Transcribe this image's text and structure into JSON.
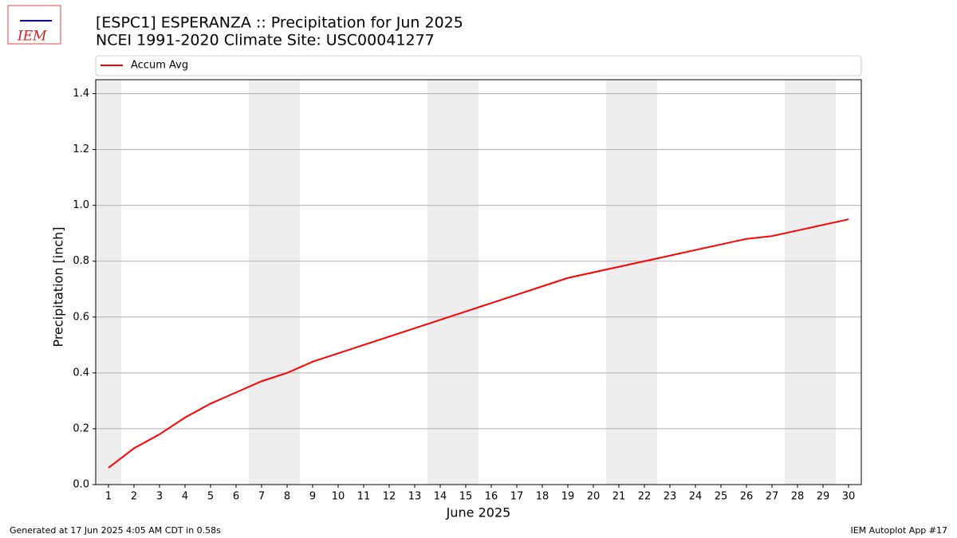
{
  "chart_data": {
    "type": "line",
    "title": "[ESPC1] ESPERANZA :: Precipitation for Jun 2025",
    "subtitle": "NCEI 1991-2020 Climate Site: USC00041277",
    "logo_text": "IEM",
    "xlabel": "June 2025",
    "ylabel": "Precipitation [inch]",
    "x": [
      1,
      2,
      3,
      4,
      5,
      6,
      7,
      8,
      9,
      10,
      11,
      12,
      13,
      14,
      15,
      16,
      17,
      18,
      19,
      20,
      21,
      22,
      23,
      24,
      25,
      26,
      27,
      28,
      29,
      30
    ],
    "series": [
      {
        "name": "Accum Avg",
        "color": "#ff0000",
        "values": [
          0.06,
          0.13,
          0.18,
          0.24,
          0.29,
          0.33,
          0.37,
          0.4,
          0.44,
          0.47,
          0.5,
          0.53,
          0.56,
          0.59,
          0.62,
          0.65,
          0.68,
          0.71,
          0.74,
          0.76,
          0.78,
          0.8,
          0.82,
          0.84,
          0.86,
          0.88,
          0.89,
          0.91,
          0.93,
          0.95
        ]
      }
    ],
    "shaded_days": [
      1,
      7,
      8,
      14,
      15,
      21,
      22,
      28,
      29
    ],
    "shade_color": "#eeeeee",
    "xlim": [
      0.5,
      30.5
    ],
    "xticks": [
      1,
      2,
      3,
      4,
      5,
      6,
      7,
      8,
      9,
      10,
      11,
      12,
      13,
      14,
      15,
      16,
      17,
      18,
      19,
      20,
      21,
      22,
      23,
      24,
      25,
      26,
      27,
      28,
      29,
      30
    ],
    "ylim": [
      0,
      1.45
    ],
    "yticks": [
      {
        "value": 0,
        "label": "0.0"
      },
      0.2,
      0.4,
      0.6,
      0.8,
      {
        "value": 1,
        "label": "1.0"
      },
      1.2,
      1.4
    ],
    "grid": true,
    "legend": "top",
    "footer_left": "Generated at 17 Jun 2025 4:05 AM CDT in 0.58s",
    "footer_right": "IEM Autoplot App #17"
  }
}
